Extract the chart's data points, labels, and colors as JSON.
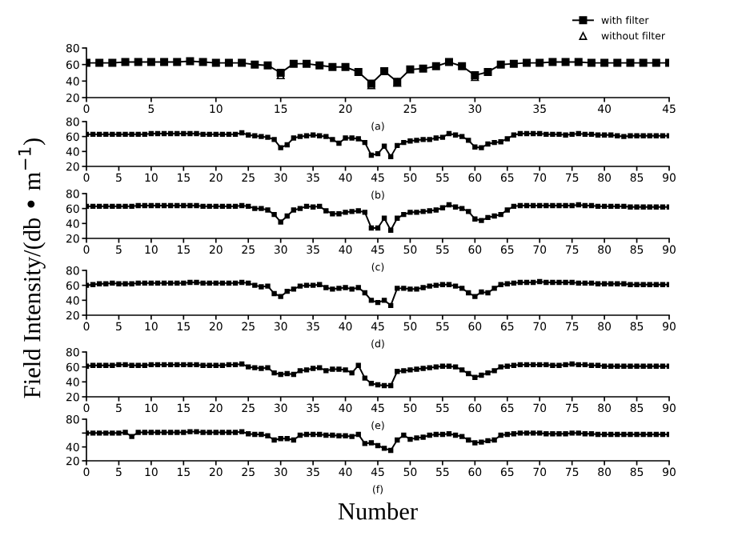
{
  "chart_data": [
    {
      "type": "line",
      "xlim": [
        0,
        45
      ],
      "xticks": [
        0,
        5,
        10,
        15,
        20,
        25,
        30,
        35,
        40,
        45
      ],
      "ylim": [
        20,
        80
      ],
      "yticks": [
        20,
        40,
        60,
        80
      ],
      "ylabel": "Field Intensity/(db • m$^{−1}$)",
      "legend": "top right",
      "annotations": [
        "(a)"
      ],
      "x": [
        0,
        1,
        2,
        3,
        4,
        5,
        6,
        7,
        8,
        9,
        10,
        11,
        12,
        13,
        14,
        15,
        16,
        17,
        18,
        19,
        20,
        21,
        22,
        23,
        24,
        25,
        26,
        27,
        28,
        29,
        30,
        31,
        32,
        33,
        34,
        35,
        36,
        37,
        38,
        39,
        40,
        41,
        42,
        43,
        44,
        45
      ],
      "series": [
        {
          "name": "with filter",
          "color": "#000000",
          "marker": "square",
          "values": [
            62,
            62,
            62,
            63,
            63,
            63,
            63,
            63,
            64,
            63,
            62,
            62,
            62,
            60,
            59,
            50,
            61,
            61,
            59,
            57,
            57,
            51,
            37,
            52,
            39,
            54,
            55,
            58,
            63,
            58,
            47,
            51,
            60,
            61,
            62,
            62,
            63,
            63,
            63,
            62,
            62,
            62,
            62,
            62,
            62,
            62
          ]
        },
        {
          "name": "without filter",
          "type": "scatter",
          "color": "#000000",
          "marker": "triangle",
          "values": [
            null,
            null,
            null,
            null,
            null,
            null,
            null,
            null,
            null,
            null,
            null,
            null,
            null,
            null,
            null,
            47,
            null,
            null,
            null,
            null,
            null,
            null,
            35,
            null,
            38,
            null,
            null,
            null,
            null,
            null,
            45,
            null,
            null,
            null,
            null,
            null,
            null,
            null,
            null,
            null,
            null,
            null,
            null,
            null,
            null,
            null
          ]
        }
      ]
    },
    {
      "type": "line",
      "xlim": [
        0,
        90
      ],
      "xticks": [
        0,
        5,
        10,
        15,
        20,
        25,
        30,
        35,
        40,
        45,
        50,
        55,
        60,
        65,
        70,
        75,
        80,
        85,
        90
      ],
      "ylim": [
        20,
        80
      ],
      "yticks": [
        20,
        40,
        60,
        80
      ],
      "annotations": [
        "(b)"
      ],
      "marker": "square",
      "color": "#000000",
      "x": [
        0,
        1,
        2,
        3,
        4,
        5,
        6,
        7,
        8,
        9,
        10,
        11,
        12,
        13,
        14,
        15,
        16,
        17,
        18,
        19,
        20,
        21,
        22,
        23,
        24,
        25,
        26,
        27,
        28,
        29,
        30,
        31,
        32,
        33,
        34,
        35,
        36,
        37,
        38,
        39,
        40,
        41,
        42,
        43,
        44,
        45,
        46,
        47,
        48,
        49,
        50,
        51,
        52,
        53,
        54,
        55,
        56,
        57,
        58,
        59,
        60,
        61,
        62,
        63,
        64,
        65,
        66,
        67,
        68,
        69,
        70,
        71,
        72,
        73,
        74,
        75,
        76,
        77,
        78,
        79,
        80,
        81,
        82,
        83,
        84,
        85,
        86,
        87,
        88,
        89,
        90
      ],
      "values": [
        63,
        63,
        63,
        63,
        63,
        63,
        63,
        63,
        63,
        63,
        64,
        64,
        64,
        64,
        64,
        64,
        64,
        64,
        63,
        63,
        63,
        63,
        63,
        63,
        65,
        62,
        61,
        60,
        59,
        56,
        45,
        49,
        58,
        60,
        61,
        62,
        61,
        60,
        56,
        51,
        58,
        58,
        57,
        52,
        35,
        37,
        47,
        33,
        48,
        52,
        54,
        55,
        56,
        56,
        58,
        59,
        64,
        62,
        60,
        55,
        46,
        45,
        50,
        52,
        53,
        57,
        62,
        64,
        64,
        64,
        64,
        63,
        63,
        63,
        62,
        63,
        64,
        63,
        63,
        62,
        62,
        62,
        61,
        60,
        61,
        61,
        61,
        61,
        61,
        61,
        61
      ]
    },
    {
      "type": "line",
      "xlim": [
        0,
        90
      ],
      "xticks": [
        0,
        5,
        10,
        15,
        20,
        25,
        30,
        35,
        40,
        45,
        50,
        55,
        60,
        65,
        70,
        75,
        80,
        85,
        90
      ],
      "ylim": [
        20,
        80
      ],
      "yticks": [
        20,
        40,
        60,
        80
      ],
      "annotations": [
        "(c)"
      ],
      "marker": "square",
      "color": "#000000",
      "x": [
        0,
        1,
        2,
        3,
        4,
        5,
        6,
        7,
        8,
        9,
        10,
        11,
        12,
        13,
        14,
        15,
        16,
        17,
        18,
        19,
        20,
        21,
        22,
        23,
        24,
        25,
        26,
        27,
        28,
        29,
        30,
        31,
        32,
        33,
        34,
        35,
        36,
        37,
        38,
        39,
        40,
        41,
        42,
        43,
        44,
        45,
        46,
        47,
        48,
        49,
        50,
        51,
        52,
        53,
        54,
        55,
        56,
        57,
        58,
        59,
        60,
        61,
        62,
        63,
        64,
        65,
        66,
        67,
        68,
        69,
        70,
        71,
        72,
        73,
        74,
        75,
        76,
        77,
        78,
        79,
        80,
        81,
        82,
        83,
        84,
        85,
        86,
        87,
        88,
        89,
        90
      ],
      "values": [
        63,
        63,
        63,
        63,
        63,
        63,
        63,
        63,
        64,
        64,
        64,
        64,
        64,
        64,
        64,
        64,
        64,
        64,
        63,
        63,
        63,
        63,
        63,
        63,
        64,
        63,
        60,
        60,
        58,
        52,
        42,
        50,
        58,
        60,
        63,
        62,
        63,
        57,
        53,
        53,
        55,
        56,
        57,
        55,
        34,
        34,
        47,
        31,
        47,
        52,
        55,
        55,
        56,
        57,
        58,
        61,
        65,
        62,
        60,
        56,
        46,
        44,
        48,
        50,
        52,
        58,
        63,
        64,
        64,
        64,
        64,
        64,
        64,
        64,
        64,
        64,
        65,
        64,
        64,
        63,
        63,
        63,
        63,
        63,
        62,
        62,
        62,
        62,
        62,
        62,
        62
      ]
    },
    {
      "type": "line",
      "xlim": [
        0,
        90
      ],
      "xticks": [
        0,
        5,
        10,
        15,
        20,
        25,
        30,
        35,
        40,
        45,
        50,
        55,
        60,
        65,
        70,
        75,
        80,
        85,
        90
      ],
      "ylim": [
        20,
        80
      ],
      "yticks": [
        20,
        40,
        60,
        80
      ],
      "annotations": [
        "(d)"
      ],
      "marker": "square",
      "color": "#000000",
      "x": [
        0,
        1,
        2,
        3,
        4,
        5,
        6,
        7,
        8,
        9,
        10,
        11,
        12,
        13,
        14,
        15,
        16,
        17,
        18,
        19,
        20,
        21,
        22,
        23,
        24,
        25,
        26,
        27,
        28,
        29,
        30,
        31,
        32,
        33,
        34,
        35,
        36,
        37,
        38,
        39,
        40,
        41,
        42,
        43,
        44,
        45,
        46,
        47,
        48,
        49,
        50,
        51,
        52,
        53,
        54,
        55,
        56,
        57,
        58,
        59,
        60,
        61,
        62,
        63,
        64,
        65,
        66,
        67,
        68,
        69,
        70,
        71,
        72,
        73,
        74,
        75,
        76,
        77,
        78,
        79,
        80,
        81,
        82,
        83,
        84,
        85,
        86,
        87,
        88,
        89,
        90
      ],
      "values": [
        60,
        61,
        62,
        62,
        63,
        62,
        62,
        62,
        63,
        63,
        63,
        63,
        63,
        63,
        63,
        63,
        64,
        64,
        63,
        63,
        63,
        63,
        63,
        63,
        64,
        63,
        60,
        58,
        59,
        49,
        45,
        52,
        55,
        59,
        60,
        60,
        61,
        57,
        55,
        56,
        57,
        55,
        57,
        50,
        40,
        37,
        40,
        33,
        56,
        56,
        55,
        55,
        57,
        59,
        60,
        61,
        61,
        59,
        56,
        50,
        45,
        51,
        50,
        56,
        61,
        62,
        63,
        64,
        64,
        64,
        65,
        64,
        64,
        64,
        64,
        64,
        63,
        63,
        63,
        62,
        62,
        62,
        62,
        62,
        61,
        61,
        61,
        61,
        61,
        61,
        61
      ]
    },
    {
      "type": "line",
      "xlim": [
        0,
        90
      ],
      "xticks": [
        0,
        5,
        10,
        15,
        20,
        25,
        30,
        35,
        40,
        45,
        50,
        55,
        60,
        65,
        70,
        75,
        80,
        85,
        90
      ],
      "ylim": [
        20,
        80
      ],
      "yticks": [
        20,
        40,
        60,
        80
      ],
      "annotations": [
        "(e)"
      ],
      "marker": "square",
      "color": "#000000",
      "x": [
        0,
        1,
        2,
        3,
        4,
        5,
        6,
        7,
        8,
        9,
        10,
        11,
        12,
        13,
        14,
        15,
        16,
        17,
        18,
        19,
        20,
        21,
        22,
        23,
        24,
        25,
        26,
        27,
        28,
        29,
        30,
        31,
        32,
        33,
        34,
        35,
        36,
        37,
        38,
        39,
        40,
        41,
        42,
        43,
        44,
        45,
        46,
        47,
        48,
        49,
        50,
        51,
        52,
        53,
        54,
        55,
        56,
        57,
        58,
        59,
        60,
        61,
        62,
        63,
        64,
        65,
        66,
        67,
        68,
        69,
        70,
        71,
        72,
        73,
        74,
        75,
        76,
        77,
        78,
        79,
        80,
        81,
        82,
        83,
        84,
        85,
        86,
        87,
        88,
        89,
        90
      ],
      "values": [
        61,
        62,
        62,
        62,
        62,
        63,
        63,
        62,
        62,
        62,
        63,
        63,
        63,
        63,
        63,
        63,
        63,
        63,
        62,
        62,
        62,
        62,
        63,
        63,
        64,
        60,
        59,
        58,
        59,
        52,
        50,
        51,
        50,
        55,
        56,
        58,
        59,
        55,
        57,
        57,
        56,
        52,
        62,
        45,
        38,
        36,
        35,
        35,
        54,
        55,
        56,
        57,
        58,
        59,
        60,
        61,
        61,
        60,
        56,
        51,
        46,
        49,
        52,
        55,
        60,
        61,
        62,
        63,
        63,
        63,
        63,
        63,
        62,
        62,
        63,
        64,
        63,
        63,
        62,
        62,
        61,
        61,
        61,
        61,
        61,
        61,
        61,
        61,
        61,
        61,
        61
      ]
    },
    {
      "type": "line",
      "xlim": [
        0,
        90
      ],
      "xticks": [
        0,
        5,
        10,
        15,
        20,
        25,
        30,
        35,
        40,
        45,
        50,
        55,
        60,
        65,
        70,
        75,
        80,
        85,
        90
      ],
      "ylim": [
        20,
        80
      ],
      "yticks": [
        20,
        {
          "value": 60,
          "label": null
        },
        40,
        80
      ],
      "annotations": [
        "(f)"
      ],
      "xlabel": "Number",
      "marker": "square",
      "color": "#000000",
      "x": [
        0,
        1,
        2,
        3,
        4,
        5,
        6,
        7,
        8,
        9,
        10,
        11,
        12,
        13,
        14,
        15,
        16,
        17,
        18,
        19,
        20,
        21,
        22,
        23,
        24,
        25,
        26,
        27,
        28,
        29,
        30,
        31,
        32,
        33,
        34,
        35,
        36,
        37,
        38,
        39,
        40,
        41,
        42,
        43,
        44,
        45,
        46,
        47,
        48,
        49,
        50,
        51,
        52,
        53,
        54,
        55,
        56,
        57,
        58,
        59,
        60,
        61,
        62,
        63,
        64,
        65,
        66,
        67,
        68,
        69,
        70,
        71,
        72,
        73,
        74,
        75,
        76,
        77,
        78,
        79,
        80,
        81,
        82,
        83,
        84,
        85,
        86,
        87,
        88,
        89,
        90
      ],
      "values": [
        60,
        60,
        60,
        60,
        60,
        60,
        61,
        55,
        61,
        61,
        61,
        61,
        61,
        61,
        61,
        61,
        62,
        62,
        61,
        61,
        61,
        61,
        61,
        61,
        62,
        59,
        58,
        58,
        56,
        50,
        52,
        52,
        50,
        57,
        58,
        58,
        58,
        57,
        57,
        56,
        56,
        55,
        58,
        45,
        46,
        42,
        38,
        35,
        50,
        57,
        51,
        53,
        54,
        57,
        58,
        58,
        59,
        57,
        55,
        50,
        46,
        47,
        49,
        50,
        57,
        58,
        59,
        60,
        60,
        60,
        60,
        59,
        59,
        59,
        59,
        60,
        60,
        59,
        59,
        58,
        58,
        58,
        58,
        58,
        58,
        58,
        58,
        58,
        58,
        58,
        58
      ]
    }
  ]
}
